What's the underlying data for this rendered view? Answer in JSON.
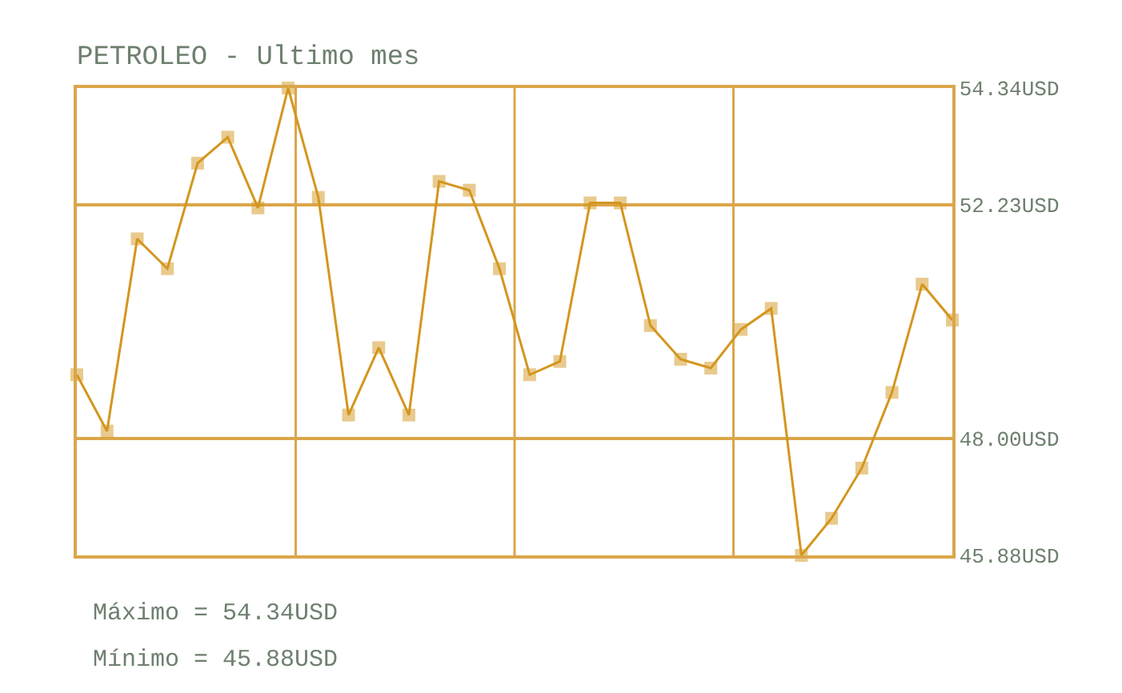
{
  "chart_data": {
    "type": "line",
    "title": "PETROLEO - Ultimo mes",
    "categories": [
      null,
      null,
      null,
      null,
      null,
      null,
      null,
      null,
      null,
      null,
      null,
      null,
      null,
      null,
      null,
      null,
      null,
      null,
      null,
      null,
      null,
      null,
      null,
      null,
      null,
      null,
      null,
      null,
      null,
      null
    ],
    "series": [
      {
        "color": "#d4961e",
        "values": [
          49.15,
          48.13,
          51.61,
          51.07,
          52.98,
          53.45,
          52.17,
          54.34,
          52.36,
          48.42,
          49.64,
          48.42,
          52.65,
          52.49,
          51.07,
          49.15,
          49.39,
          52.26,
          52.26,
          50.04,
          49.43,
          49.27,
          49.97,
          50.35,
          45.88,
          46.55,
          47.46,
          48.83,
          50.79,
          50.14
        ]
      }
    ],
    "ylim": [
      45.88,
      54.34
    ],
    "yticks": [
      {
        "value": 45.88,
        "label": "45.88USD"
      },
      {
        "value": 48.0,
        "label": "48.00USD"
      },
      {
        "value": 52.23,
        "label": "52.23USD"
      },
      {
        "value": 54.34,
        "label": "54.34USD"
      }
    ],
    "tick_labels": "y",
    "grid": true,
    "marker": "square",
    "line_style": "solid",
    "annotations": [
      "Máximo = 54.34USD",
      "Mínimo = 45.88USD"
    ]
  }
}
